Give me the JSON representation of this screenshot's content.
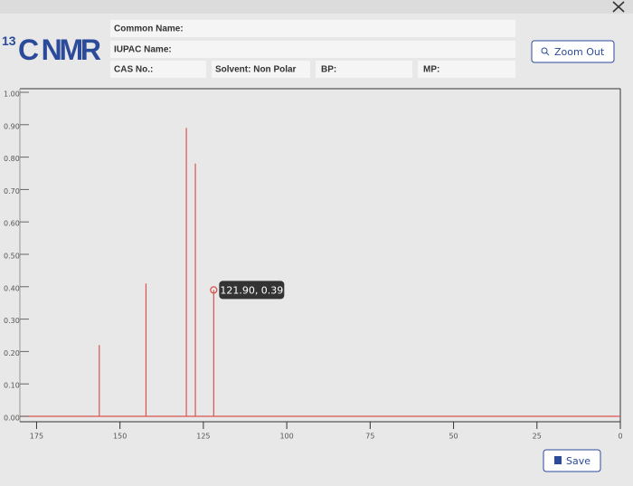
{
  "header": {
    "title_superscript": "13",
    "title": "C NMR",
    "fields": {
      "common_name": "Common Name:",
      "iupac_name": "IUPAC Name:",
      "cas_no": "CAS No.:",
      "solvent": "Solvent: Non Polar",
      "bp": "BP:",
      "mp": "MP:"
    },
    "zoom_button": "Zoom Out",
    "save_button": "Save"
  },
  "chart_data": {
    "type": "stem",
    "x": [
      156.2,
      142.2,
      130.1,
      127.4,
      121.9
    ],
    "values": [
      0.22,
      0.41,
      0.89,
      0.78,
      0.39
    ],
    "color": "#d9534f",
    "xlim": [
      180,
      0
    ],
    "ylim": [
      0,
      1
    ],
    "xticks": [
      175,
      150,
      125,
      100,
      75,
      50,
      25,
      0
    ],
    "yticks": [
      {
        "value": 0,
        "label": "0.00"
      },
      {
        "value": 0.1,
        "label": "0.10"
      },
      {
        "value": 0.2,
        "label": "0.20"
      },
      {
        "value": 0.3,
        "label": "0.30"
      },
      {
        "value": 0.4,
        "label": "0.40"
      },
      {
        "value": 0.5,
        "label": "0.50"
      },
      {
        "value": 0.6,
        "label": "0.60"
      },
      {
        "value": 0.7,
        "label": "0.70"
      },
      {
        "value": 0.8,
        "label": "0.80"
      },
      {
        "value": 0.9,
        "label": "0.90"
      },
      {
        "value": 1,
        "label": "1.00"
      }
    ],
    "annotation": "121.90, 0.39"
  }
}
